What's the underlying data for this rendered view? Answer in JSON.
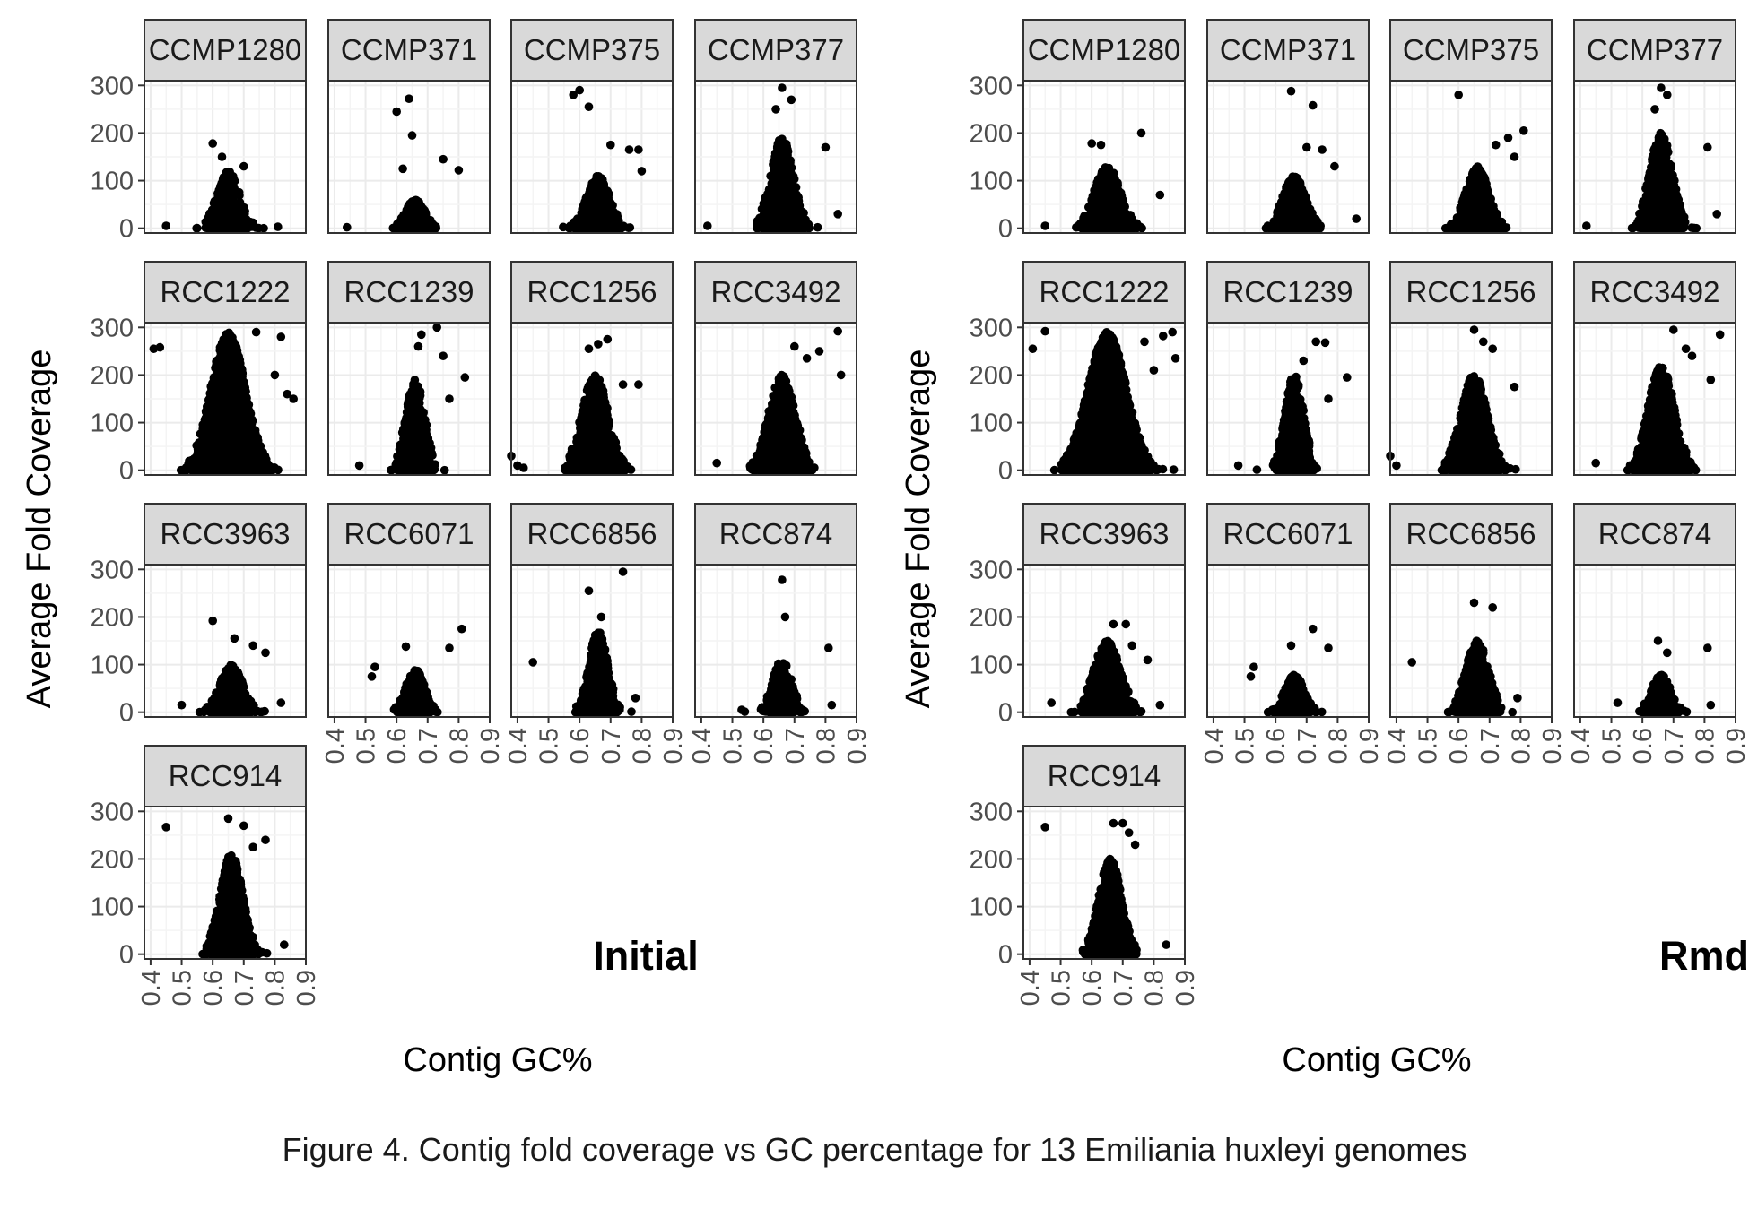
{
  "caption": "Figure 4. Contig fold coverage vs GC percentage for 13 Emiliania huxleyi genomes",
  "colors": {
    "point": "#000000",
    "strip_fill": "#d9d9d9",
    "strip_border": "#333333",
    "panel_border": "#333333",
    "grid_major": "#ebebeb",
    "grid_minor": "#f4f4f4",
    "tick_text": "#4d4d4d"
  },
  "chart_data": [
    {
      "type": "scatter",
      "group_label": "Initial",
      "xlabel": "Contig GC%",
      "ylabel": "Average Fold Coverage",
      "x_ticks": [
        "0.4",
        "0.5",
        "0.6",
        "0.7",
        "0.8",
        "0.9"
      ],
      "y_ticks": [
        "0",
        "100",
        "200",
        "300"
      ],
      "xlim": [
        0.38,
        0.9
      ],
      "ylim": [
        -10,
        310
      ],
      "grid": true,
      "facets": [
        {
          "name": "CCMP1280",
          "spread": 0.06,
          "center": 0.65,
          "density": 500,
          "peak": 120,
          "outliers": [
            [
              0.6,
              178
            ],
            [
              0.63,
              150
            ],
            [
              0.7,
              130
            ],
            [
              0.45,
              5
            ],
            [
              0.81,
              3
            ]
          ]
        },
        {
          "name": "CCMP371",
          "spread": 0.05,
          "center": 0.66,
          "density": 600,
          "peak": 60,
          "outliers": [
            [
              0.64,
              272
            ],
            [
              0.6,
              245
            ],
            [
              0.65,
              195
            ],
            [
              0.75,
              145
            ],
            [
              0.8,
              122
            ],
            [
              0.62,
              125
            ],
            [
              0.44,
              2
            ]
          ]
        },
        {
          "name": "CCMP375",
          "spread": 0.06,
          "center": 0.66,
          "density": 900,
          "peak": 110,
          "outliers": [
            [
              0.6,
              290
            ],
            [
              0.63,
              255
            ],
            [
              0.58,
              280
            ],
            [
              0.7,
              175
            ],
            [
              0.76,
              165
            ],
            [
              0.79,
              165
            ],
            [
              0.8,
              120
            ]
          ]
        },
        {
          "name": "CCMP377",
          "spread": 0.06,
          "center": 0.66,
          "density": 900,
          "peak": 190,
          "outliers": [
            [
              0.66,
              295
            ],
            [
              0.69,
              270
            ],
            [
              0.64,
              250
            ],
            [
              0.8,
              170
            ],
            [
              0.84,
              30
            ],
            [
              0.42,
              5
            ]
          ]
        },
        {
          "name": "RCC1222",
          "spread": 0.09,
          "center": 0.65,
          "density": 3500,
          "peak": 290,
          "outliers": [
            [
              0.41,
              255
            ],
            [
              0.43,
              258
            ],
            [
              0.82,
              280
            ],
            [
              0.84,
              160
            ],
            [
              0.86,
              150
            ],
            [
              0.74,
              290
            ],
            [
              0.8,
              200
            ]
          ]
        },
        {
          "name": "RCC1239",
          "spread": 0.05,
          "center": 0.66,
          "density": 800,
          "peak": 190,
          "outliers": [
            [
              0.73,
              300
            ],
            [
              0.68,
              285
            ],
            [
              0.67,
              260
            ],
            [
              0.75,
              240
            ],
            [
              0.82,
              195
            ],
            [
              0.77,
              150
            ],
            [
              0.48,
              10
            ]
          ]
        },
        {
          "name": "RCC1256",
          "spread": 0.07,
          "center": 0.65,
          "density": 1200,
          "peak": 200,
          "outliers": [
            [
              0.69,
              275
            ],
            [
              0.66,
              265
            ],
            [
              0.63,
              255
            ],
            [
              0.79,
              180
            ],
            [
              0.74,
              180
            ],
            [
              0.38,
              30
            ],
            [
              0.4,
              10
            ],
            [
              0.42,
              5
            ]
          ]
        },
        {
          "name": "RCC3492",
          "spread": 0.07,
          "center": 0.66,
          "density": 1300,
          "peak": 200,
          "outliers": [
            [
              0.84,
              292
            ],
            [
              0.7,
              260
            ],
            [
              0.78,
              250
            ],
            [
              0.85,
              200
            ],
            [
              0.74,
              235
            ],
            [
              0.45,
              15
            ]
          ]
        },
        {
          "name": "RCC3963",
          "spread": 0.06,
          "center": 0.66,
          "density": 800,
          "peak": 100,
          "outliers": [
            [
              0.6,
              192
            ],
            [
              0.67,
              155
            ],
            [
              0.73,
              140
            ],
            [
              0.77,
              125
            ],
            [
              0.5,
              15
            ],
            [
              0.82,
              20
            ]
          ]
        },
        {
          "name": "RCC6071",
          "spread": 0.05,
          "center": 0.66,
          "density": 500,
          "peak": 90,
          "outliers": [
            [
              0.81,
              175
            ],
            [
              0.63,
              138
            ],
            [
              0.77,
              135
            ],
            [
              0.53,
              95
            ],
            [
              0.52,
              75
            ]
          ]
        },
        {
          "name": "RCC6856",
          "spread": 0.05,
          "center": 0.66,
          "density": 800,
          "peak": 170,
          "outliers": [
            [
              0.74,
              295
            ],
            [
              0.63,
              255
            ],
            [
              0.67,
              200
            ],
            [
              0.45,
              105
            ],
            [
              0.78,
              30
            ]
          ]
        },
        {
          "name": "RCC874",
          "spread": 0.05,
          "center": 0.66,
          "density": 450,
          "peak": 110,
          "outliers": [
            [
              0.66,
              278
            ],
            [
              0.67,
              200
            ],
            [
              0.81,
              135
            ],
            [
              0.82,
              15
            ],
            [
              0.53,
              5
            ]
          ]
        },
        {
          "name": "RCC914",
          "spread": 0.06,
          "center": 0.66,
          "density": 1500,
          "peak": 210,
          "outliers": [
            [
              0.45,
              267
            ],
            [
              0.65,
              285
            ],
            [
              0.7,
              270
            ],
            [
              0.73,
              225
            ],
            [
              0.77,
              240
            ],
            [
              0.83,
              20
            ]
          ]
        }
      ]
    },
    {
      "type": "scatter",
      "group_label": "Rmd",
      "xlabel": "Contig GC%",
      "ylabel": "Average Fold Coverage",
      "x_ticks": [
        "0.4",
        "0.5",
        "0.6",
        "0.7",
        "0.8",
        "0.9"
      ],
      "y_ticks": [
        "0",
        "100",
        "200",
        "300"
      ],
      "xlim": [
        0.38,
        0.9
      ],
      "ylim": [
        -10,
        310
      ],
      "grid": true,
      "facets": [
        {
          "name": "CCMP1280",
          "spread": 0.07,
          "center": 0.65,
          "density": 900,
          "peak": 130,
          "outliers": [
            [
              0.6,
              178
            ],
            [
              0.63,
              175
            ],
            [
              0.76,
              200
            ],
            [
              0.82,
              70
            ],
            [
              0.45,
              5
            ]
          ]
        },
        {
          "name": "CCMP371",
          "spread": 0.06,
          "center": 0.66,
          "density": 900,
          "peak": 110,
          "outliers": [
            [
              0.65,
              288
            ],
            [
              0.72,
              258
            ],
            [
              0.7,
              170
            ],
            [
              0.75,
              165
            ],
            [
              0.79,
              130
            ],
            [
              0.86,
              20
            ]
          ]
        },
        {
          "name": "CCMP375",
          "spread": 0.06,
          "center": 0.66,
          "density": 1200,
          "peak": 130,
          "outliers": [
            [
              0.6,
              280
            ],
            [
              0.81,
              205
            ],
            [
              0.76,
              190
            ],
            [
              0.72,
              175
            ],
            [
              0.78,
              150
            ]
          ]
        },
        {
          "name": "CCMP377",
          "spread": 0.06,
          "center": 0.66,
          "density": 1200,
          "peak": 200,
          "outliers": [
            [
              0.66,
              295
            ],
            [
              0.68,
              280
            ],
            [
              0.64,
              250
            ],
            [
              0.81,
              170
            ],
            [
              0.84,
              30
            ],
            [
              0.42,
              5
            ]
          ]
        },
        {
          "name": "RCC1222",
          "spread": 0.1,
          "center": 0.65,
          "density": 4000,
          "peak": 290,
          "outliers": [
            [
              0.41,
              255
            ],
            [
              0.45,
              292
            ],
            [
              0.83,
              282
            ],
            [
              0.86,
              290
            ],
            [
              0.87,
              235
            ],
            [
              0.8,
              210
            ],
            [
              0.77,
              270
            ]
          ]
        },
        {
          "name": "RCC1239",
          "spread": 0.05,
          "center": 0.66,
          "density": 900,
          "peak": 200,
          "outliers": [
            [
              0.73,
              270
            ],
            [
              0.76,
              268
            ],
            [
              0.69,
              230
            ],
            [
              0.83,
              195
            ],
            [
              0.77,
              150
            ],
            [
              0.48,
              10
            ]
          ]
        },
        {
          "name": "RCC1256",
          "spread": 0.07,
          "center": 0.65,
          "density": 1300,
          "peak": 200,
          "outliers": [
            [
              0.65,
              295
            ],
            [
              0.68,
              270
            ],
            [
              0.71,
              255
            ],
            [
              0.78,
              175
            ],
            [
              0.38,
              30
            ],
            [
              0.4,
              10
            ]
          ]
        },
        {
          "name": "RCC3492",
          "spread": 0.07,
          "center": 0.66,
          "density": 1500,
          "peak": 220,
          "outliers": [
            [
              0.85,
              285
            ],
            [
              0.7,
              295
            ],
            [
              0.74,
              255
            ],
            [
              0.76,
              240
            ],
            [
              0.82,
              190
            ],
            [
              0.45,
              15
            ]
          ]
        },
        {
          "name": "RCC3963",
          "spread": 0.07,
          "center": 0.65,
          "density": 1000,
          "peak": 150,
          "outliers": [
            [
              0.67,
              185
            ],
            [
              0.71,
              185
            ],
            [
              0.73,
              140
            ],
            [
              0.78,
              110
            ],
            [
              0.47,
              20
            ],
            [
              0.82,
              15
            ]
          ]
        },
        {
          "name": "RCC6071",
          "spread": 0.05,
          "center": 0.66,
          "density": 600,
          "peak": 80,
          "outliers": [
            [
              0.72,
              175
            ],
            [
              0.65,
              140
            ],
            [
              0.77,
              135
            ],
            [
              0.53,
              95
            ],
            [
              0.52,
              75
            ]
          ]
        },
        {
          "name": "RCC6856",
          "spread": 0.06,
          "center": 0.66,
          "density": 900,
          "peak": 150,
          "outliers": [
            [
              0.65,
              230
            ],
            [
              0.71,
              220
            ],
            [
              0.45,
              105
            ],
            [
              0.79,
              30
            ]
          ]
        },
        {
          "name": "RCC874",
          "spread": 0.05,
          "center": 0.66,
          "density": 450,
          "peak": 80,
          "outliers": [
            [
              0.65,
              150
            ],
            [
              0.68,
              125
            ],
            [
              0.81,
              135
            ],
            [
              0.82,
              15
            ],
            [
              0.52,
              20
            ]
          ]
        },
        {
          "name": "RCC914",
          "spread": 0.06,
          "center": 0.66,
          "density": 1500,
          "peak": 200,
          "outliers": [
            [
              0.45,
              267
            ],
            [
              0.67,
              275
            ],
            [
              0.7,
              275
            ],
            [
              0.72,
              255
            ],
            [
              0.74,
              230
            ],
            [
              0.84,
              20
            ]
          ]
        }
      ]
    }
  ]
}
